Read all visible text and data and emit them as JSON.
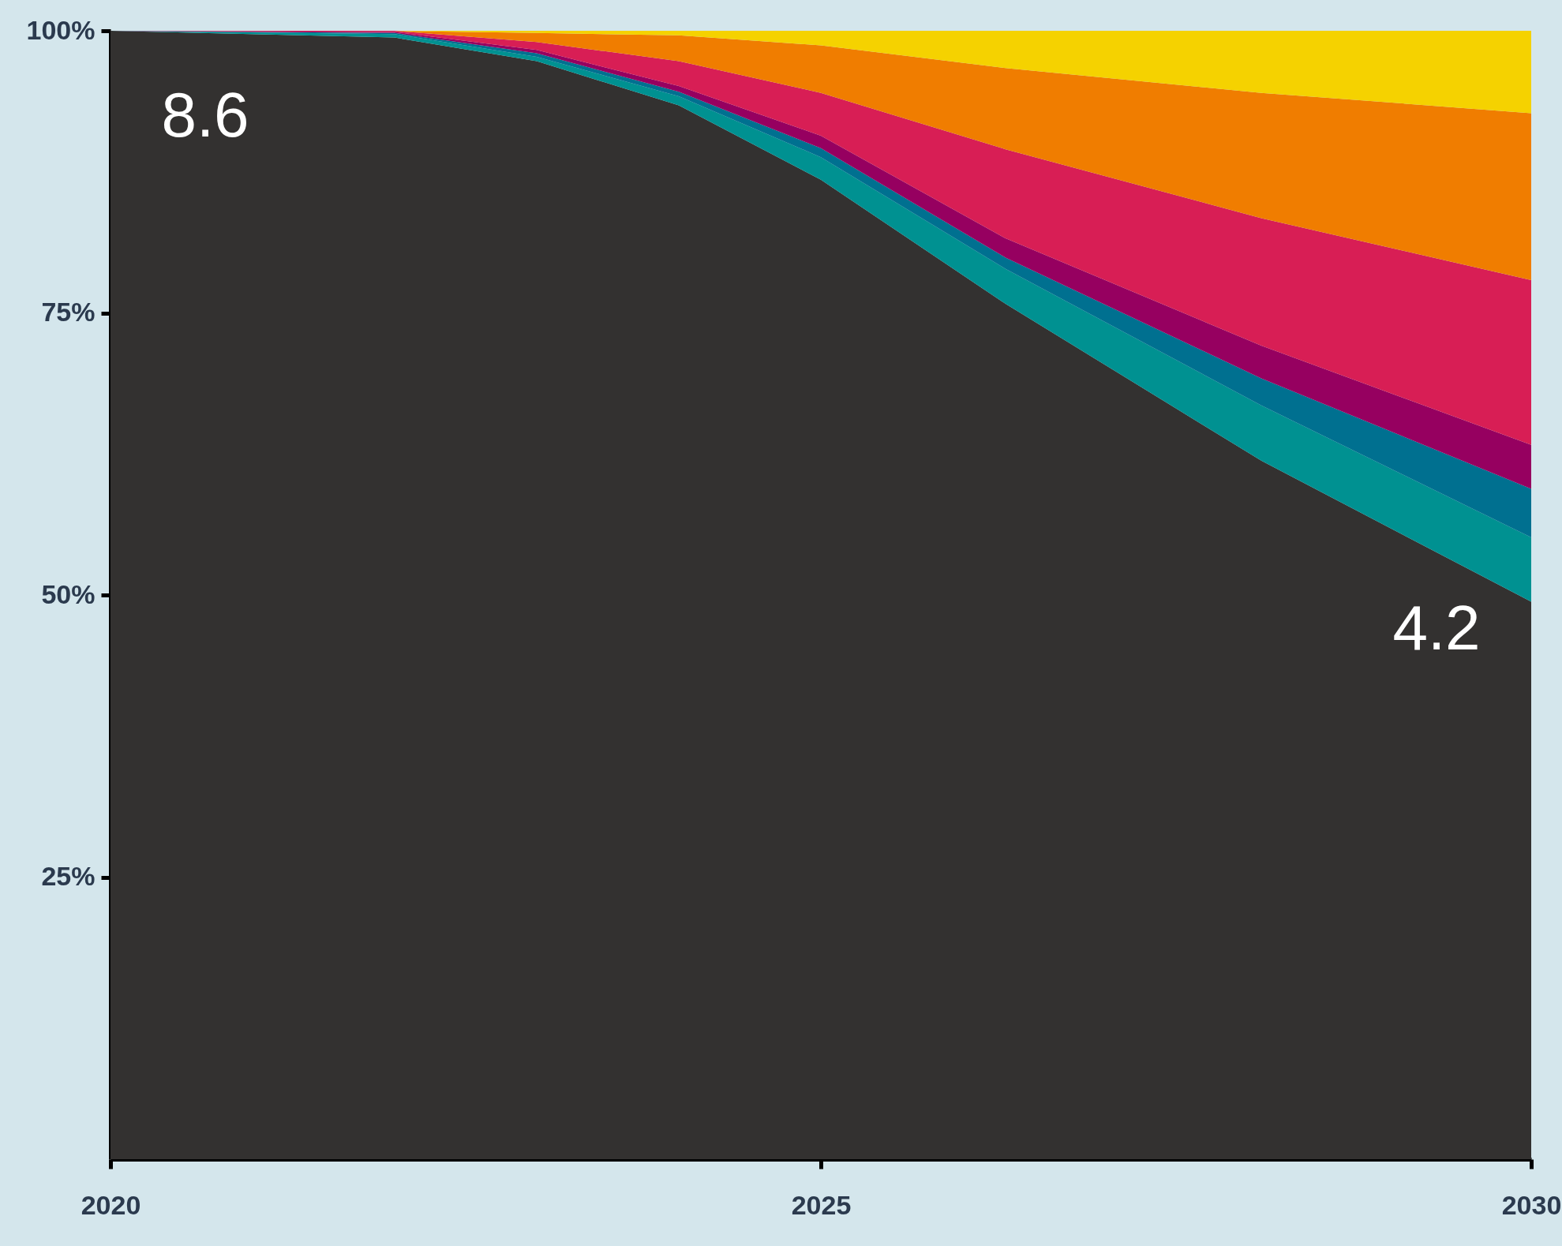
{
  "chart_data": {
    "type": "area",
    "stacked": true,
    "x": [
      2020,
      2022,
      2023,
      2024,
      2025,
      2026.3,
      2028.1,
      2030
    ],
    "series": [
      {
        "color": "#333130",
        "values": [
          100,
          99.4,
          97.3,
          93.4,
          86.8,
          75.8,
          61.9,
          49.4
        ]
      },
      {
        "color": "#009191",
        "values": [
          0,
          0.3,
          0.4,
          0.8,
          2.0,
          3.1,
          4.9,
          5.7
        ]
      },
      {
        "color": "#007090",
        "values": [
          0,
          0.1,
          0.3,
          0.4,
          0.8,
          1.0,
          2.4,
          4.3
        ]
      },
      {
        "color": "#960060",
        "values": [
          0,
          0.1,
          0.3,
          0.5,
          1.1,
          1.7,
          2.9,
          3.9
        ]
      },
      {
        "color": "#d81e55",
        "values": [
          0,
          0.1,
          0.7,
          2.2,
          3.8,
          7.9,
          11.3,
          14.6
        ]
      },
      {
        "color": "#f07d00",
        "values": [
          0,
          0,
          0.8,
          2.3,
          4.2,
          7.2,
          11.1,
          14.8
        ]
      },
      {
        "color": "#f5d200",
        "values": [
          0,
          0,
          0.2,
          0.4,
          1.3,
          3.3,
          5.5,
          7.3
        ]
      }
    ],
    "xlim": [
      2020,
      2030
    ],
    "xticks": [
      2020,
      2025,
      2030
    ],
    "ylim": [
      0,
      100
    ],
    "yticks": [
      {
        "value": 25,
        "label": "25%"
      },
      {
        "value": 50,
        "label": "50%"
      },
      {
        "value": 75,
        "label": "75%"
      },
      {
        "value": 100,
        "label": "100%"
      }
    ],
    "annotations": [
      "8.6",
      "4.2"
    ],
    "grid": false,
    "legend": false
  }
}
